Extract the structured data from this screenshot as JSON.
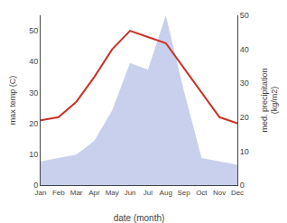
{
  "chart_data": {
    "type": "line",
    "categories": [
      "Jan",
      "Feb",
      "Mar",
      "Apr",
      "May",
      "Jun",
      "Jul",
      "Aug",
      "Sep",
      "Oct",
      "Nov",
      "Dec"
    ],
    "xlabel": "date (month)",
    "ylabel": "max temp (C)",
    "y2label": "med. precipitation\n(kg/m2)",
    "series": [
      {
        "type": "area",
        "axis": "y2",
        "color": "#c8d0ee",
        "values": [
          7,
          8,
          9,
          13,
          22,
          36,
          34,
          50,
          28,
          8,
          7,
          6
        ]
      },
      {
        "type": "line",
        "color": "#c83228",
        "values": [
          21,
          22,
          27,
          35,
          44,
          50,
          48,
          46,
          38,
          30,
          22,
          20
        ]
      }
    ],
    "ylim": [
      0,
      55
    ],
    "yticks": [
      0,
      10,
      20,
      30,
      40,
      50
    ],
    "y2lim": [
      0,
      50
    ],
    "y2ticks": [
      0,
      10,
      20,
      30,
      40,
      50
    ],
    "grid": false
  }
}
